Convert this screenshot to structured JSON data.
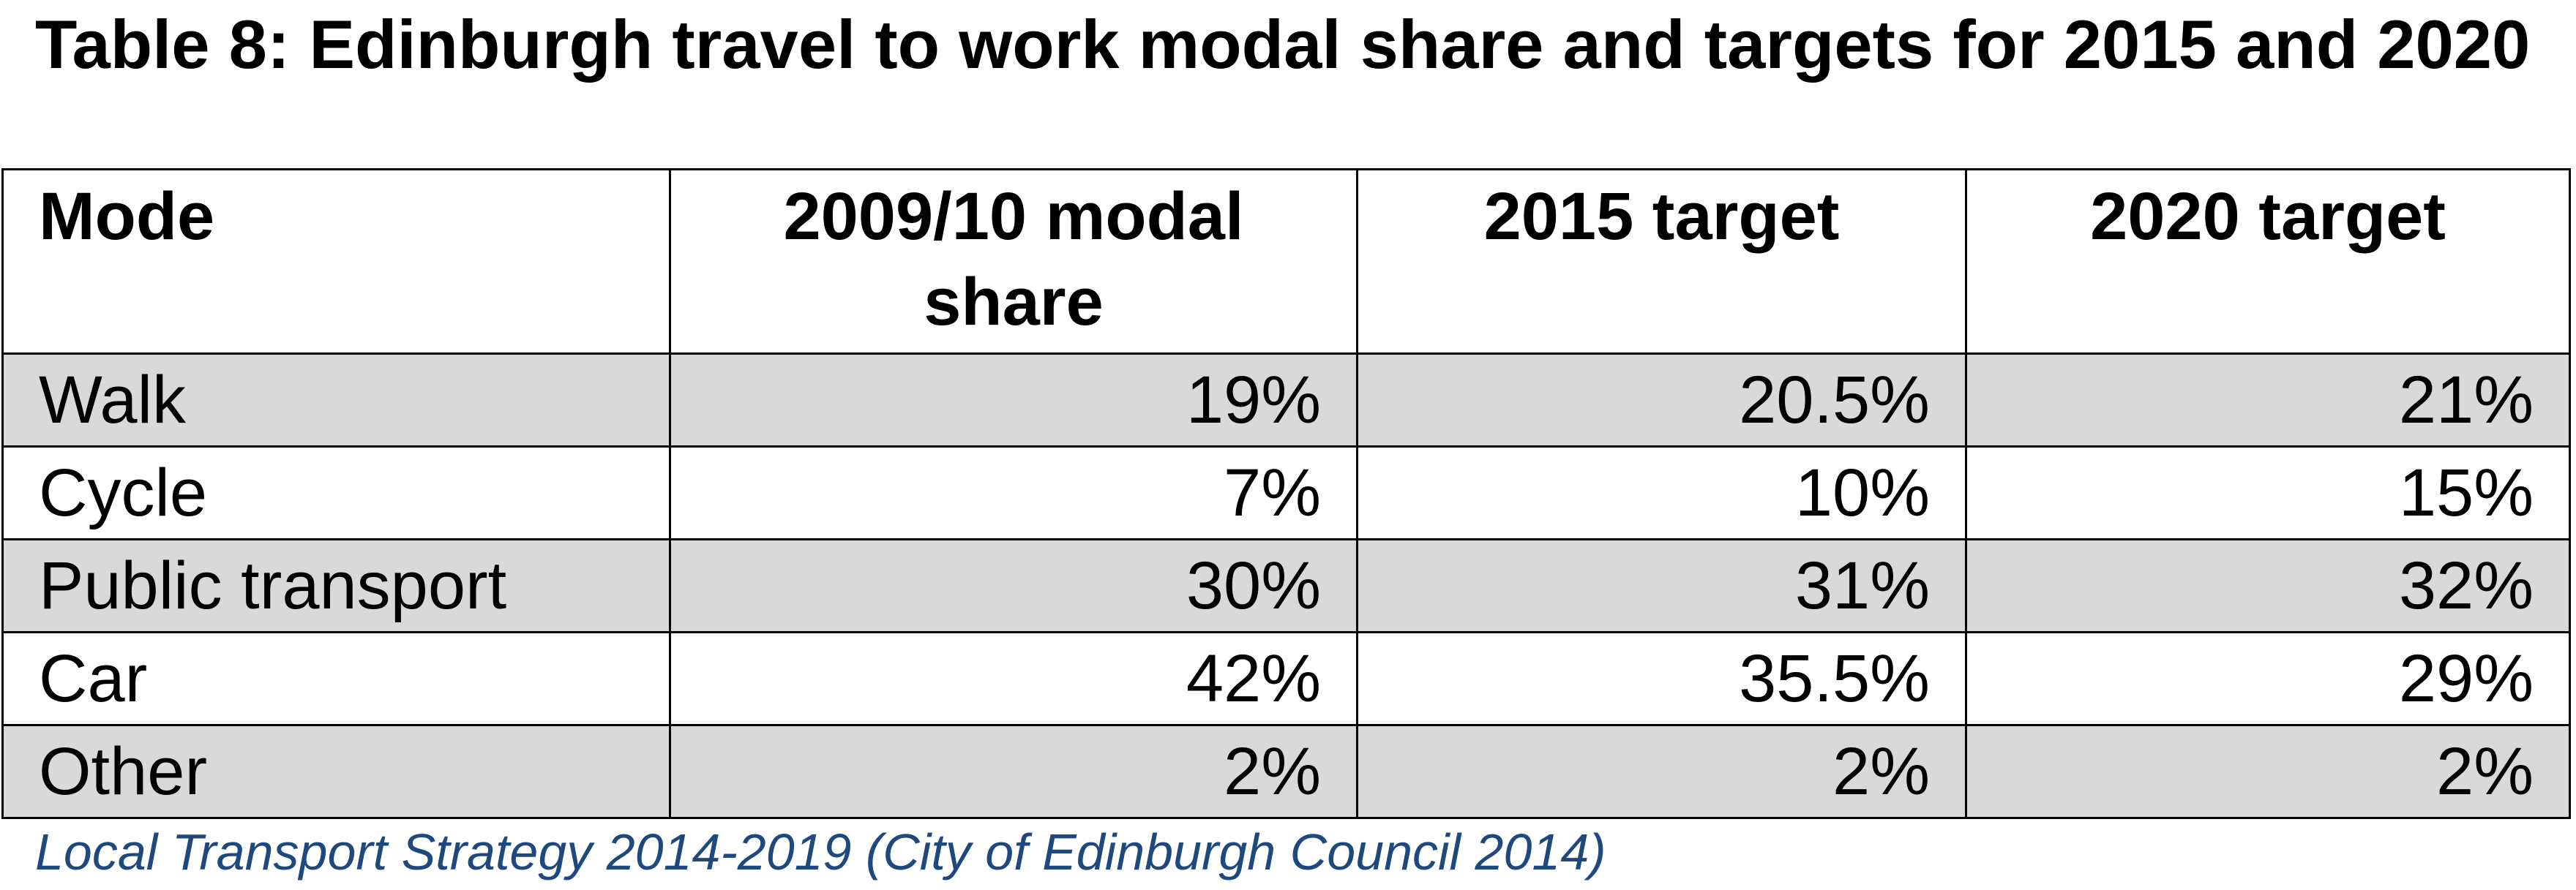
{
  "title": "Table 8: Edinburgh travel to work modal share and targets for 2015 and 2020",
  "table": {
    "headers": [
      "Mode",
      "2009/10 modal share",
      "2015 target",
      "2020 target"
    ],
    "rows": [
      {
        "mode": "Walk",
        "share_2009_10": "19%",
        "target_2015": "20.5%",
        "target_2020": "21%",
        "shaded": true
      },
      {
        "mode": "Cycle",
        "share_2009_10": "7%",
        "target_2015": "10%",
        "target_2020": "15%",
        "shaded": false
      },
      {
        "mode": "Public transport",
        "share_2009_10": "30%",
        "target_2015": "31%",
        "target_2020": "32%",
        "shaded": true
      },
      {
        "mode": "Car",
        "share_2009_10": "42%",
        "target_2015": "35.5%",
        "target_2020": "29%",
        "shaded": false
      },
      {
        "mode": "Other",
        "share_2009_10": "2%",
        "target_2015": "2%",
        "target_2020": "2%",
        "shaded": true
      }
    ]
  },
  "source": "Local Transport Strategy 2014-2019 (City of Edinburgh Council 2014)",
  "colors": {
    "shaded_row": "#d9d9d9",
    "source_text": "#1f497d",
    "border": "#000000"
  }
}
